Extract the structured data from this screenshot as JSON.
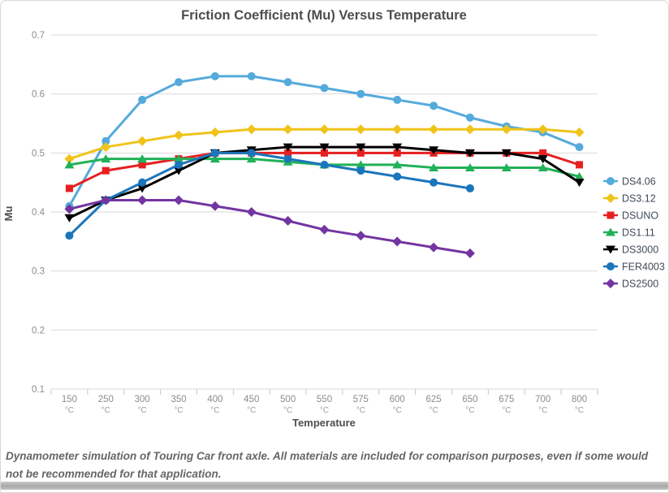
{
  "title": "Friction Coefficient (Mu) Versus Temperature",
  "axes": {
    "y_label": "Mu",
    "x_label": "Temperature",
    "y_ticks": [
      "0.7",
      "0.6",
      "0.5",
      "0.4",
      "0.3",
      "0.2",
      "0.1"
    ],
    "x_tick_unit": "°C"
  },
  "caption": "Dynamometer simulation of Touring Car front axle. All materials are included for comparison purposes, even if some would not be recommended for that application.",
  "chart_data": {
    "type": "line",
    "title": "Friction Coefficient (Mu) Versus Temperature",
    "xlabel": "Temperature",
    "ylabel": "Mu",
    "ylim": [
      0.1,
      0.7
    ],
    "grid": true,
    "legend_position": "right",
    "categories": [
      "150",
      "250",
      "300",
      "350",
      "400",
      "450",
      "500",
      "550",
      "575",
      "600",
      "625",
      "650",
      "675",
      "700",
      "800"
    ],
    "category_unit": "°C",
    "series": [
      {
        "name": "DS4.06",
        "color": "#55aadc",
        "marker": "circle",
        "values": [
          0.41,
          0.52,
          0.59,
          0.62,
          0.63,
          0.63,
          0.62,
          0.61,
          0.6,
          0.59,
          0.58,
          0.56,
          0.545,
          0.535,
          0.51
        ]
      },
      {
        "name": "DS3.12",
        "color": "#f0c319",
        "marker": "diamond",
        "values": [
          0.49,
          0.51,
          0.52,
          0.53,
          0.535,
          0.54,
          0.54,
          0.54,
          0.54,
          0.54,
          0.54,
          0.54,
          0.54,
          0.54,
          0.535
        ]
      },
      {
        "name": "DSUNO",
        "color": "#e62020",
        "marker": "square",
        "values": [
          0.44,
          0.47,
          0.48,
          0.49,
          0.5,
          0.5,
          0.5,
          0.5,
          0.5,
          0.5,
          0.5,
          0.5,
          0.5,
          0.5,
          0.48
        ]
      },
      {
        "name": "DS1.11",
        "color": "#21b158",
        "marker": "triangle-up",
        "values": [
          0.48,
          0.49,
          0.49,
          0.49,
          0.49,
          0.49,
          0.485,
          0.48,
          0.48,
          0.48,
          0.475,
          0.475,
          0.475,
          0.475,
          0.46
        ]
      },
      {
        "name": "DS3000",
        "color": "#000000",
        "marker": "triangle-down",
        "values": [
          0.39,
          0.42,
          0.44,
          0.47,
          0.5,
          0.505,
          0.51,
          0.51,
          0.51,
          0.51,
          0.505,
          0.5,
          0.5,
          0.49,
          0.45
        ]
      },
      {
        "name": "FER4003",
        "color": "#1b75bb",
        "marker": "circle",
        "values": [
          0.36,
          0.42,
          0.45,
          0.48,
          0.5,
          0.5,
          0.49,
          0.48,
          0.47,
          0.46,
          0.45,
          0.44
        ]
      },
      {
        "name": "DS2500",
        "color": "#7335a2",
        "marker": "diamond",
        "values": [
          0.405,
          0.42,
          0.42,
          0.42,
          0.41,
          0.4,
          0.385,
          0.37,
          0.36,
          0.35,
          0.34,
          0.33
        ]
      }
    ]
  },
  "colors": {
    "gridline": "#d9d9d9",
    "tick": "#c6c6c6",
    "title_text": "#4d4d4d",
    "tick_text": "#8c8c8c",
    "legend_text": "#3f4a56",
    "caption_text": "#666666"
  }
}
